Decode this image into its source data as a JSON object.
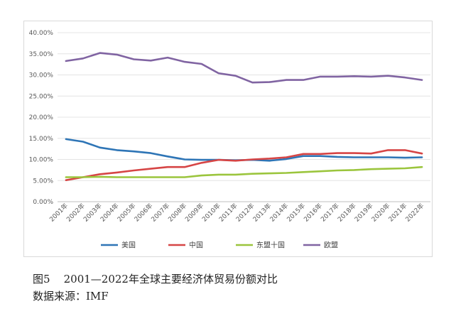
{
  "caption": {
    "title": "图5    2001—2022年全球主要经济体贸易份额对比",
    "source": "数据来源：IMF"
  },
  "chart_data": {
    "type": "line",
    "title": "",
    "xlabel": "",
    "ylabel": "",
    "ylim": [
      0,
      0.4
    ],
    "y_ticks": [
      "0.00%",
      "5.00%",
      "10.00%",
      "15.00%",
      "20.00%",
      "25.00%",
      "30.00%",
      "35.00%",
      "40.00%"
    ],
    "grid": true,
    "legend_position": "bottom",
    "categories": [
      "2001年",
      "2002年",
      "2003年",
      "2004年",
      "2005年",
      "2006年",
      "2007年",
      "2008年",
      "2009年",
      "2010年",
      "2011年",
      "2012年",
      "2013年",
      "2014年",
      "2015年",
      "2016年",
      "2017年",
      "2018年",
      "2019年",
      "2020年",
      "2021年",
      "2022年"
    ],
    "series": [
      {
        "name": "美国",
        "color": "#2e75b6",
        "values": [
          0.148,
          0.142,
          0.128,
          0.122,
          0.119,
          0.115,
          0.107,
          0.1,
          0.099,
          0.099,
          0.098,
          0.099,
          0.097,
          0.101,
          0.108,
          0.108,
          0.106,
          0.105,
          0.105,
          0.105,
          0.104,
          0.105
        ]
      },
      {
        "name": "中国",
        "color": "#d64545",
        "values": [
          0.051,
          0.058,
          0.065,
          0.069,
          0.074,
          0.078,
          0.082,
          0.082,
          0.092,
          0.099,
          0.097,
          0.1,
          0.102,
          0.105,
          0.113,
          0.113,
          0.115,
          0.115,
          0.114,
          0.122,
          0.122,
          0.114
        ]
      },
      {
        "name": "东盟十国",
        "color": "#9bc53d",
        "values": [
          0.058,
          0.058,
          0.059,
          0.058,
          0.058,
          0.058,
          0.058,
          0.058,
          0.062,
          0.064,
          0.064,
          0.066,
          0.067,
          0.068,
          0.07,
          0.072,
          0.074,
          0.075,
          0.077,
          0.078,
          0.079,
          0.082
        ]
      },
      {
        "name": "欧盟",
        "color": "#8064a2",
        "values": [
          0.333,
          0.339,
          0.352,
          0.348,
          0.337,
          0.334,
          0.341,
          0.331,
          0.326,
          0.304,
          0.298,
          0.282,
          0.283,
          0.288,
          0.288,
          0.296,
          0.296,
          0.297,
          0.296,
          0.298,
          0.294,
          0.288
        ]
      }
    ]
  }
}
